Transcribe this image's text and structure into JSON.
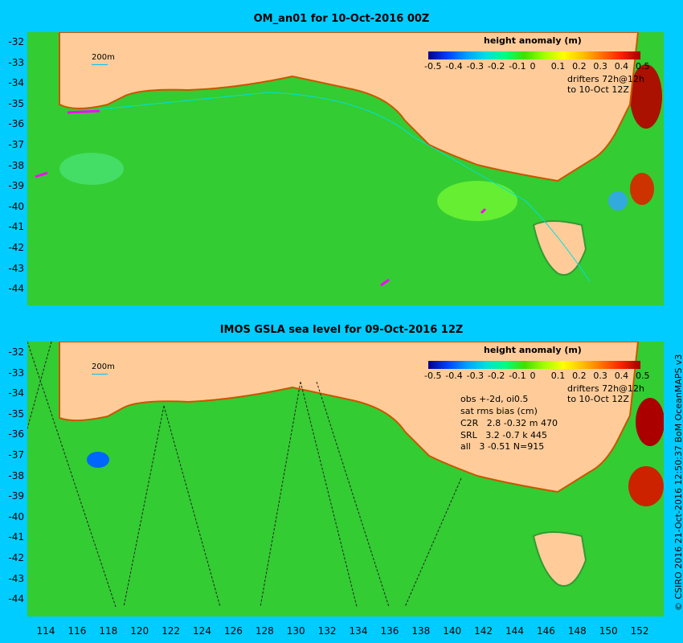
{
  "panels": [
    {
      "title": "OM_an01 for 10-Oct-2016 00Z",
      "scale_label": "200m",
      "colorbar_title": "height anomaly (m)",
      "drifters": [
        "drifters 72h@12h",
        "to 10-Oct 12Z"
      ]
    },
    {
      "title": "IMOS GSLA sea level  for 09-Oct-2016 12Z",
      "scale_label": "200m",
      "colorbar_title": "height anomaly (m)",
      "drifters": [
        "drifters 72h@12h",
        "to 10-Oct 12Z"
      ],
      "stats": [
        "obs +-2d, oi0.5",
        "sat rms bias (cm)",
        "C2R   2.8 -0.32 m 470",
        "SRL   3.2 -0.7 k 445",
        "all   3 -0.51 N=915"
      ]
    }
  ],
  "colorbar_ticks": [
    "-0.5",
    "-0.4",
    "-0.3",
    "-0.2",
    "-0.1",
    "0",
    "0.1",
    "0.2",
    "0.3",
    "0.4",
    "0.5"
  ],
  "lat_labels": [
    "-32",
    "-33",
    "-34",
    "-35",
    "-36",
    "-37",
    "-38",
    "-39",
    "-40",
    "-41",
    "-42",
    "-43",
    "-44"
  ],
  "lon_labels": [
    "114",
    "116",
    "118",
    "120",
    "122",
    "124",
    "126",
    "128",
    "130",
    "132",
    "134",
    "136",
    "138",
    "140",
    "142",
    "144",
    "146",
    "148",
    "150",
    "152"
  ],
  "credit": "© CSIRO 2016  21-Oct-2016 12:50:37 BoM OceanMAPS v3",
  "colors": {
    "background": "#00ccff",
    "land": "#ffcc99",
    "ocean": "#33cc33",
    "drifter": "#ff00ff"
  }
}
